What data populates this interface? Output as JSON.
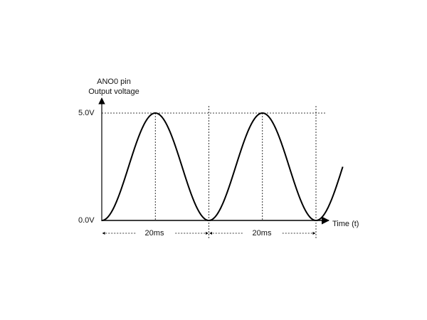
{
  "chart_data": {
    "type": "line",
    "title": "",
    "ylabel_line1": "ANO0 pin",
    "ylabel_line2": "Output voltage",
    "xlabel": "Time (t)",
    "y_ticks": [
      "5.0V",
      "0.0V"
    ],
    "ylim": [
      0,
      5
    ],
    "xlim_ms": [
      0,
      46
    ],
    "series": [
      {
        "waveform": "raised-cosine",
        "period_ms": 20,
        "min_v": 0,
        "max_v": 5,
        "peaks_ms": [
          10,
          30
        ],
        "troughs_ms": [
          0,
          20,
          40
        ],
        "end_ms": 45
      }
    ],
    "annotations": [
      {
        "label": "20ms",
        "from_ms": 0,
        "to_ms": 20
      },
      {
        "label": "20ms",
        "from_ms": 20,
        "to_ms": 40
      }
    ],
    "line_color": "#000000"
  }
}
